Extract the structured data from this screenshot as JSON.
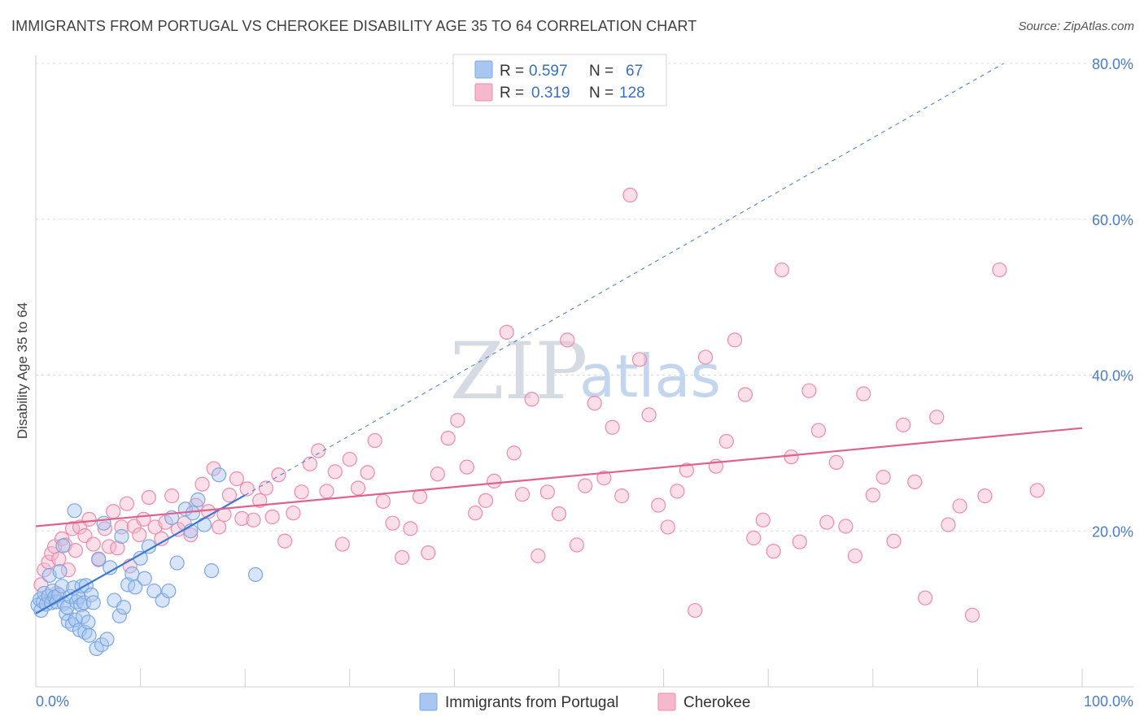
{
  "header": {
    "title": "IMMIGRANTS FROM PORTUGAL VS CHEROKEE DISABILITY AGE 35 TO 64 CORRELATION CHART",
    "source": "Source: ZipAtlas.com"
  },
  "watermark": {
    "zip": "ZIP",
    "atlas": "atlas"
  },
  "legend": {
    "rows": [
      {
        "r_label": "R =",
        "r_value": "0.597",
        "n_label": "N =",
        "n_value": "67",
        "color": "#a8c6f0"
      },
      {
        "r_label": "R =",
        "r_value": "0.319",
        "n_label": "N =",
        "n_value": "128",
        "color": "#f5b8cc"
      }
    ]
  },
  "bottom_legend": [
    {
      "label": "Immigrants from Portugal",
      "color": "#a8c6f0"
    },
    {
      "label": "Cherokee",
      "color": "#f5b8cc"
    }
  ],
  "chart_data": {
    "type": "scatter",
    "title": "IMMIGRANTS FROM PORTUGAL VS CHEROKEE DISABILITY AGE 35 TO 64 CORRELATION CHART",
    "xlabel": "",
    "ylabel": "Disability Age 35 to 64",
    "xlim": [
      0,
      100
    ],
    "ylim": [
      0,
      80
    ],
    "x_tick_labels": [
      "0.0%",
      "100.0%"
    ],
    "y_ticks": [
      20,
      40,
      60,
      80
    ],
    "y_tick_labels": [
      "20.0%",
      "40.0%",
      "60.0%",
      "80.0%"
    ],
    "grid": true,
    "colors": {
      "blue": "#7aa7e3",
      "blue_line": "#3a78d4",
      "pink": "#f08aab",
      "pink_line": "#e0628c",
      "grid": "#dcdcdc"
    },
    "series": [
      {
        "name": "Immigrants from Portugal",
        "color": "#a8c6f0",
        "points": [
          [
            0.2,
            10.5
          ],
          [
            0.4,
            11.2
          ],
          [
            0.5,
            9.8
          ],
          [
            0.7,
            10.9
          ],
          [
            0.8,
            12.0
          ],
          [
            1.0,
            10.6
          ],
          [
            1.2,
            11.6
          ],
          [
            1.3,
            14.3
          ],
          [
            1.5,
            10.8
          ],
          [
            1.6,
            12.3
          ],
          [
            1.8,
            11.5
          ],
          [
            2.0,
            10.9
          ],
          [
            2.2,
            11.8
          ],
          [
            2.3,
            14.8
          ],
          [
            2.5,
            12.9
          ],
          [
            2.6,
            18.1
          ],
          [
            2.7,
            10.7
          ],
          [
            2.9,
            9.4
          ],
          [
            3.0,
            10.2
          ],
          [
            3.1,
            8.4
          ],
          [
            3.3,
            11.6
          ],
          [
            3.5,
            8.0
          ],
          [
            3.6,
            12.7
          ],
          [
            3.7,
            22.6
          ],
          [
            3.8,
            8.6
          ],
          [
            3.9,
            10.9
          ],
          [
            4.1,
            11.5
          ],
          [
            4.2,
            7.3
          ],
          [
            4.3,
            10.5
          ],
          [
            4.4,
            12.9
          ],
          [
            4.5,
            9.0
          ],
          [
            4.6,
            10.8
          ],
          [
            4.7,
            7.0
          ],
          [
            4.8,
            13.0
          ],
          [
            5.0,
            8.3
          ],
          [
            5.1,
            6.6
          ],
          [
            5.3,
            11.8
          ],
          [
            5.5,
            10.8
          ],
          [
            5.8,
            4.9
          ],
          [
            6.0,
            16.4
          ],
          [
            6.3,
            5.4
          ],
          [
            6.5,
            21.0
          ],
          [
            6.8,
            6.1
          ],
          [
            7.1,
            15.3
          ],
          [
            7.5,
            11.1
          ],
          [
            8.0,
            9.1
          ],
          [
            8.2,
            19.3
          ],
          [
            8.4,
            10.2
          ],
          [
            8.8,
            13.1
          ],
          [
            9.2,
            14.5
          ],
          [
            9.5,
            12.8
          ],
          [
            10.0,
            16.5
          ],
          [
            10.4,
            13.9
          ],
          [
            10.8,
            18.0
          ],
          [
            11.3,
            12.3
          ],
          [
            12.1,
            11.1
          ],
          [
            12.7,
            12.3
          ],
          [
            13.0,
            21.7
          ],
          [
            13.5,
            15.9
          ],
          [
            14.3,
            22.8
          ],
          [
            14.8,
            20.0
          ],
          [
            15.0,
            22.3
          ],
          [
            15.5,
            24.0
          ],
          [
            16.1,
            20.8
          ],
          [
            16.8,
            14.9
          ],
          [
            17.5,
            27.2
          ],
          [
            21.0,
            14.4
          ]
        ]
      },
      {
        "name": "Cherokee",
        "color": "#f5b8cc",
        "points": [
          [
            0.5,
            13.1
          ],
          [
            0.8,
            15.0
          ],
          [
            1.2,
            16.0
          ],
          [
            1.5,
            17.1
          ],
          [
            1.8,
            18.0
          ],
          [
            2.0,
            12.0
          ],
          [
            2.2,
            16.4
          ],
          [
            2.5,
            19.0
          ],
          [
            2.8,
            18.2
          ],
          [
            3.1,
            15.0
          ],
          [
            3.5,
            20.3
          ],
          [
            3.8,
            17.5
          ],
          [
            4.2,
            20.5
          ],
          [
            4.7,
            19.4
          ],
          [
            5.1,
            21.5
          ],
          [
            5.5,
            18.3
          ],
          [
            6.0,
            16.3
          ],
          [
            6.6,
            20.3
          ],
          [
            7.0,
            18.0
          ],
          [
            7.4,
            22.5
          ],
          [
            7.8,
            17.8
          ],
          [
            8.2,
            20.5
          ],
          [
            8.7,
            23.5
          ],
          [
            9.0,
            15.5
          ],
          [
            9.4,
            20.6
          ],
          [
            9.9,
            19.5
          ],
          [
            10.3,
            21.5
          ],
          [
            10.8,
            24.3
          ],
          [
            11.4,
            20.5
          ],
          [
            12.0,
            19.0
          ],
          [
            12.4,
            21.1
          ],
          [
            13.0,
            24.5
          ],
          [
            13.6,
            20.2
          ],
          [
            14.2,
            21.0
          ],
          [
            14.8,
            19.5
          ],
          [
            15.3,
            23.3
          ],
          [
            15.9,
            26.0
          ],
          [
            16.5,
            22.5
          ],
          [
            17.0,
            28.0
          ],
          [
            17.5,
            20.5
          ],
          [
            18.0,
            22.1
          ],
          [
            18.5,
            24.6
          ],
          [
            19.2,
            26.7
          ],
          [
            19.7,
            21.6
          ],
          [
            20.2,
            25.4
          ],
          [
            20.8,
            21.4
          ],
          [
            21.4,
            23.9
          ],
          [
            22.0,
            25.5
          ],
          [
            22.6,
            21.8
          ],
          [
            23.2,
            27.2
          ],
          [
            23.8,
            18.7
          ],
          [
            24.6,
            22.3
          ],
          [
            25.4,
            25.0
          ],
          [
            26.2,
            28.6
          ],
          [
            27.0,
            30.3
          ],
          [
            27.8,
            25.1
          ],
          [
            28.6,
            27.6
          ],
          [
            29.3,
            18.3
          ],
          [
            30.0,
            29.2
          ],
          [
            30.8,
            25.5
          ],
          [
            31.7,
            27.5
          ],
          [
            32.4,
            31.6
          ],
          [
            33.2,
            23.8
          ],
          [
            34.1,
            21.0
          ],
          [
            35.0,
            16.6
          ],
          [
            35.8,
            20.3
          ],
          [
            36.7,
            24.4
          ],
          [
            37.5,
            17.2
          ],
          [
            38.4,
            27.3
          ],
          [
            39.4,
            31.9
          ],
          [
            40.3,
            34.2
          ],
          [
            41.2,
            28.2
          ],
          [
            42.0,
            22.3
          ],
          [
            43.0,
            23.9
          ],
          [
            43.8,
            26.4
          ],
          [
            45.0,
            45.5
          ],
          [
            45.7,
            30.0
          ],
          [
            46.5,
            24.7
          ],
          [
            47.4,
            36.9
          ],
          [
            48.0,
            16.8
          ],
          [
            48.9,
            25.0
          ],
          [
            50.0,
            22.2
          ],
          [
            50.8,
            44.5
          ],
          [
            51.7,
            18.2
          ],
          [
            52.5,
            25.8
          ],
          [
            53.4,
            36.4
          ],
          [
            54.3,
            26.8
          ],
          [
            55.1,
            33.3
          ],
          [
            56.0,
            24.5
          ],
          [
            56.8,
            63.1
          ],
          [
            57.7,
            42.0
          ],
          [
            58.6,
            34.9
          ],
          [
            59.5,
            23.3
          ],
          [
            60.4,
            20.5
          ],
          [
            61.3,
            25.1
          ],
          [
            62.2,
            27.8
          ],
          [
            63.0,
            9.8
          ],
          [
            64.0,
            42.3
          ],
          [
            65.0,
            28.3
          ],
          [
            66.0,
            31.5
          ],
          [
            66.8,
            44.5
          ],
          [
            67.8,
            37.5
          ],
          [
            68.6,
            19.1
          ],
          [
            69.5,
            21.4
          ],
          [
            70.5,
            17.4
          ],
          [
            71.3,
            53.5
          ],
          [
            72.2,
            29.5
          ],
          [
            73.0,
            18.6
          ],
          [
            73.9,
            38.0
          ],
          [
            74.8,
            32.9
          ],
          [
            75.6,
            21.1
          ],
          [
            76.5,
            28.8
          ],
          [
            77.4,
            20.6
          ],
          [
            78.3,
            16.8
          ],
          [
            79.1,
            37.6
          ],
          [
            80.0,
            24.6
          ],
          [
            81.0,
            26.9
          ],
          [
            82.0,
            18.7
          ],
          [
            82.9,
            33.6
          ],
          [
            84.0,
            26.3
          ],
          [
            85.0,
            11.4
          ],
          [
            86.1,
            34.6
          ],
          [
            87.2,
            20.8
          ],
          [
            88.3,
            23.2
          ],
          [
            89.5,
            9.2
          ],
          [
            90.7,
            24.5
          ],
          [
            92.1,
            53.5
          ],
          [
            95.7,
            25.2
          ]
        ]
      }
    ],
    "trend_lines": [
      {
        "series": "Immigrants from Portugal",
        "style": "solid",
        "x": [
          0,
          20
        ],
        "y": [
          9.4,
          24.6
        ]
      },
      {
        "series": "Immigrants from Portugal",
        "style": "dashed",
        "x": [
          20,
          92.5
        ],
        "y": [
          24.6,
          80.0
        ]
      },
      {
        "series": "Cherokee",
        "style": "solid",
        "x": [
          0,
          100
        ],
        "y": [
          20.6,
          33.2
        ]
      }
    ]
  }
}
